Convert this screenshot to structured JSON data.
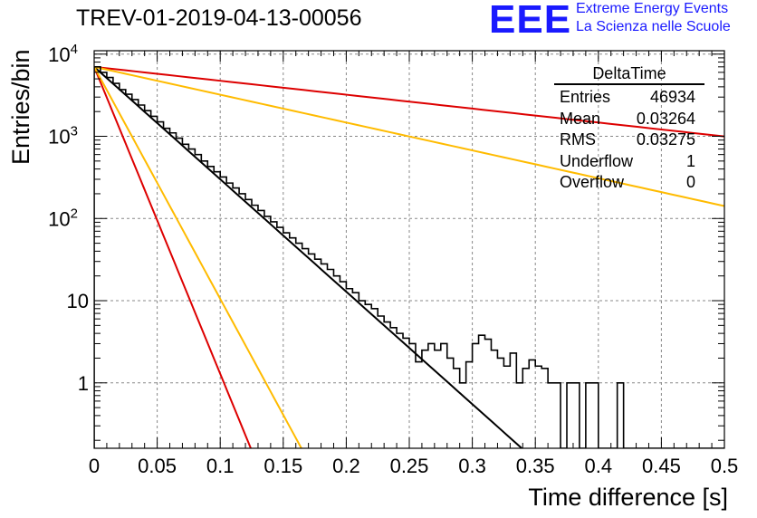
{
  "title": "TREV-01-2019-04-13-00056",
  "brand": {
    "logo_text": "EEE",
    "line1": "Extreme Energy Events",
    "line2": "La Scienza nelle Scuole",
    "color": "#1a1aff"
  },
  "stats_box": {
    "title": "DeltaTime",
    "rows": [
      {
        "label": "Entries",
        "value": "46934"
      },
      {
        "label": "Mean",
        "value": "0.03264"
      },
      {
        "label": "RMS",
        "value": "0.03275"
      },
      {
        "label": "Underflow",
        "value": "1"
      },
      {
        "label": "Overflow",
        "value": "0"
      }
    ]
  },
  "chart_data": {
    "type": "histogram",
    "xlabel": "Time difference [s]",
    "ylabel": "Entries/bin",
    "xlim": [
      0,
      0.5
    ],
    "ylim": [
      0.16,
      11000
    ],
    "log_y": true,
    "grid": true,
    "x_ticks": [
      "0",
      "0.05",
      "0.1",
      "0.15",
      "0.2",
      "0.25",
      "0.3",
      "0.35",
      "0.4",
      "0.45",
      "0.5"
    ],
    "y_ticks": [
      {
        "value": 1,
        "label": "1"
      },
      {
        "value": 10,
        "label": "10"
      },
      {
        "value": 100,
        "label": "10^2"
      },
      {
        "value": 1000,
        "label": "10^3"
      },
      {
        "value": 10000,
        "label": "10^4"
      }
    ],
    "histogram": {
      "bin_width": 0.005,
      "color": "#000000",
      "counts": [
        7000,
        6000,
        5200,
        4400,
        3700,
        3250,
        2800,
        2400,
        2050,
        1750,
        1500,
        1250,
        1100,
        950,
        800,
        700,
        600,
        500,
        430,
        370,
        320,
        270,
        235,
        200,
        170,
        145,
        125,
        106,
        91,
        78,
        67,
        58,
        50,
        43,
        37,
        32,
        28,
        24,
        20,
        17,
        14,
        12.5,
        10,
        9,
        8,
        6.5,
        5.5,
        4.7,
        4,
        3.5,
        3,
        1.8,
        2.5,
        3,
        2.5,
        3,
        2,
        1.5,
        1,
        1.8,
        3,
        3.8,
        3.4,
        2.5,
        2,
        1.6,
        2.3,
        1,
        1.5,
        1.9,
        1.6,
        1.5,
        1,
        1,
        0,
        1,
        1,
        0,
        1,
        1,
        0,
        0,
        0,
        1,
        0,
        0,
        0,
        0,
        0,
        0,
        0,
        0,
        0,
        0,
        0,
        0,
        0,
        0,
        0,
        0
      ]
    },
    "curves": [
      {
        "color": "#000000",
        "y0": 7000,
        "rate": 31.5
      },
      {
        "color": "#dd0000",
        "y0": 7000,
        "rate": 86
      },
      {
        "color": "#ffbb00",
        "y0": 7000,
        "rate": 65
      },
      {
        "color": "#dd0000",
        "y0": 7000,
        "rate": 3.9
      },
      {
        "color": "#ffbb00",
        "y0": 7000,
        "rate": 7.8
      }
    ]
  }
}
